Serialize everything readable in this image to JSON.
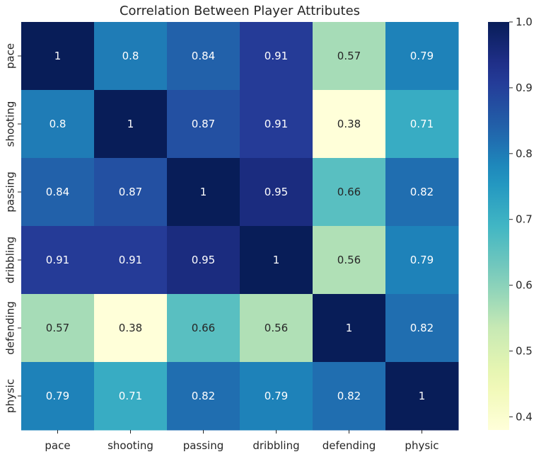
{
  "chart_data": {
    "type": "heatmap",
    "title": "Correlation Between Player Attributes",
    "xlabel": "",
    "ylabel": "",
    "x_categories": [
      "pace",
      "shooting",
      "passing",
      "dribbling",
      "defending",
      "physic"
    ],
    "y_categories": [
      "pace",
      "shooting",
      "passing",
      "dribbling",
      "defending",
      "physic"
    ],
    "values": [
      [
        1,
        0.8,
        0.84,
        0.91,
        0.57,
        0.79
      ],
      [
        0.8,
        1,
        0.87,
        0.91,
        0.38,
        0.71
      ],
      [
        0.84,
        0.87,
        1,
        0.95,
        0.66,
        0.82
      ],
      [
        0.91,
        0.91,
        0.95,
        1,
        0.56,
        0.79
      ],
      [
        0.57,
        0.38,
        0.66,
        0.56,
        1,
        0.82
      ],
      [
        0.79,
        0.71,
        0.82,
        0.79,
        0.82,
        1
      ]
    ],
    "cell_labels": [
      [
        "1",
        "0.8",
        "0.84",
        "0.91",
        "0.57",
        "0.79"
      ],
      [
        "0.8",
        "1",
        "0.87",
        "0.91",
        "0.38",
        "0.71"
      ],
      [
        "0.84",
        "0.87",
        "1",
        "0.95",
        "0.66",
        "0.82"
      ],
      [
        "0.91",
        "0.91",
        "0.95",
        "1",
        "0.56",
        "0.79"
      ],
      [
        "0.57",
        "0.38",
        "0.66",
        "0.56",
        "1",
        "0.82"
      ],
      [
        "0.79",
        "0.71",
        "0.82",
        "0.79",
        "0.82",
        "1"
      ]
    ],
    "colormap": "YlGnBu",
    "colorbar": {
      "range": [
        0.38,
        1.0
      ],
      "ticks": [
        0.4,
        0.5,
        0.6,
        0.7,
        0.8,
        0.9,
        1.0
      ],
      "tick_labels": [
        "0.4",
        "0.5",
        "0.6",
        "0.7",
        "0.8",
        "0.9",
        "1.0"
      ]
    },
    "grid": false,
    "legend": "colorbar-right"
  }
}
